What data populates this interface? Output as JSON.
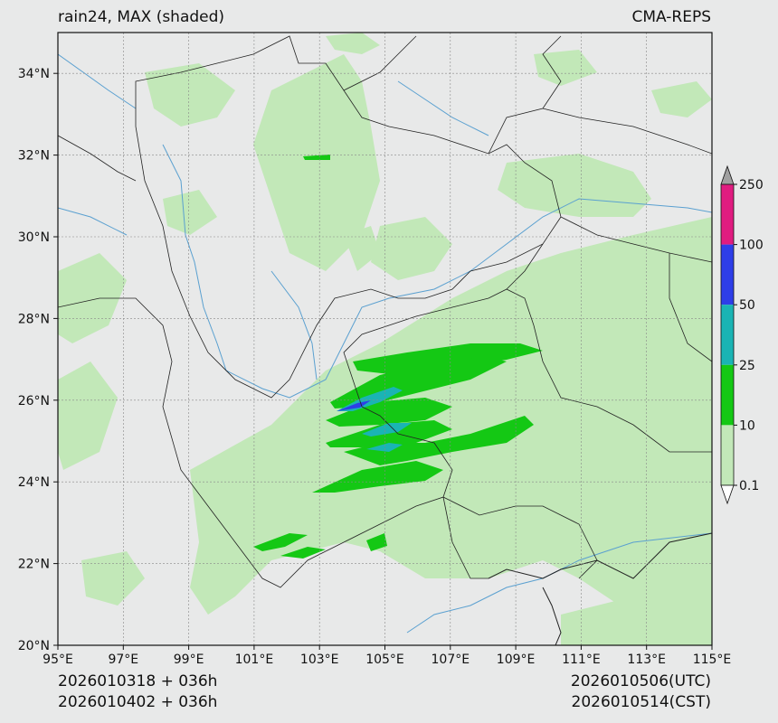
{
  "header": {
    "title_left": "rain24, MAX (shaded)",
    "title_right": "CMA-REPS"
  },
  "footer": {
    "left_line1": "2026010318  +  036h",
    "left_line2": "2026010402  +  036h",
    "right_line1": "2026010506(UTC)",
    "right_line2": "2026010514(CST)"
  },
  "map": {
    "lon_range": [
      95,
      115
    ],
    "lat_range": [
      20,
      35
    ],
    "lon_ticks": [
      "95°E",
      "97°E",
      "99°E",
      "101°E",
      "103°E",
      "105°E",
      "107°E",
      "109°E",
      "111°E",
      "113°E",
      "115°E"
    ],
    "lat_ticks": [
      "20°N",
      "22°N",
      "24°N",
      "26°N",
      "28°N",
      "30°N",
      "32°N",
      "34°N"
    ],
    "gridlines": true,
    "land_color": "#e8e9e9",
    "river_color": "#5aa0d0",
    "border_color": "#222222"
  },
  "colorbar": {
    "labels": [
      "0.1",
      "10",
      "25",
      "50",
      "100",
      "250"
    ],
    "colors": [
      "#c2e8b8",
      "#14c814",
      "#1ab4b4",
      "#2e3ee8",
      "#e01c80"
    ],
    "over_color": "#a0a0a0",
    "under_color": "#ffffff",
    "placement": "right"
  }
}
